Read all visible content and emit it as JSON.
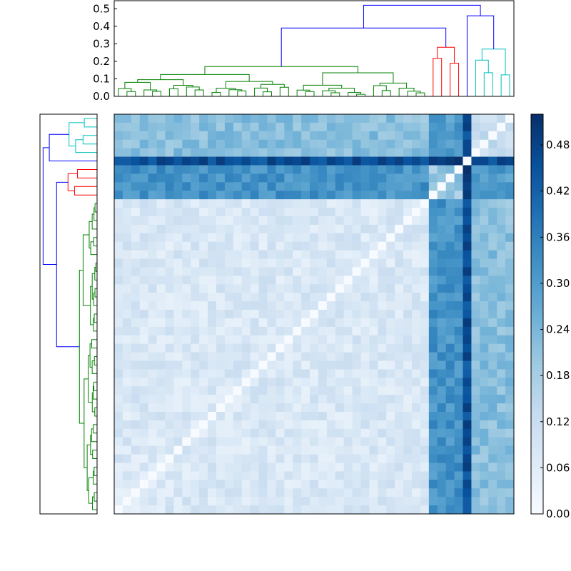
{
  "chart_data": [
    {
      "type": "dendrogram",
      "title": "",
      "orientation": "top",
      "ylim": [
        0,
        0.55
      ],
      "y_ticks": [
        0.0,
        0.1,
        0.2,
        0.3,
        0.4,
        0.5
      ],
      "y_tick_labels": [
        "0.0",
        "0.1",
        "0.2",
        "0.3",
        "0.4",
        "0.5"
      ],
      "leaf_count": 47,
      "cluster_colors": {
        "main": "#008000",
        "red": "#ff0000",
        "cyan": "#00bfbf",
        "root": "#0000ff"
      },
      "clusters": [
        {
          "color": "green",
          "leaves": 37
        },
        {
          "color": "red",
          "leaves": 4
        },
        {
          "color": "cyan",
          "leaves": 6
        }
      ],
      "root_merges": [
        {
          "height": 0.52,
          "color": "blue",
          "joins": [
            "green+red",
            "blue-cyan"
          ]
        },
        {
          "height": 0.39,
          "color": "blue",
          "joins": [
            "green",
            "red"
          ]
        },
        {
          "height": 0.46,
          "color": "blue",
          "joins": [
            "single leaf",
            "cyan"
          ]
        },
        {
          "height": 0.28,
          "color": "red",
          "joins": [
            "red subcluster"
          ]
        },
        {
          "height": 0.27,
          "color": "cyan",
          "joins": [
            "cyan subcluster"
          ]
        },
        {
          "height": 0.17,
          "color": "green",
          "joins": [
            "green subcluster"
          ]
        }
      ]
    },
    {
      "type": "dendrogram",
      "orientation": "left",
      "title": "",
      "note_colors": [
        "cyan",
        "blue",
        "red",
        "green"
      ]
    },
    {
      "type": "heatmap",
      "title": "",
      "rows": 47,
      "cols": 47,
      "colormap": "Blues",
      "vmin": 0.0,
      "vmax": 0.52,
      "colorbar_ticks": [
        0.0,
        0.06,
        0.12,
        0.18,
        0.24,
        0.3,
        0.36,
        0.42,
        0.48
      ],
      "colorbar_tick_labels": [
        "0.00",
        "0.06",
        "0.12",
        "0.18",
        "0.24",
        "0.30",
        "0.36",
        "0.42",
        "0.48"
      ],
      "block_structure": {
        "green_green": 0.08,
        "green_red": 0.32,
        "green_single": 0.45,
        "green_cyan": 0.22,
        "red_red": 0.2,
        "single_all": 0.46,
        "cyan_cyan": 0.12,
        "diagonal": 0.0
      }
    }
  ]
}
